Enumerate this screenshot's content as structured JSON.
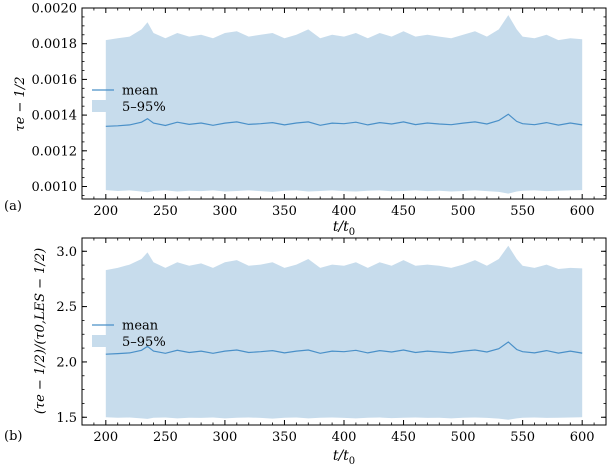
{
  "chart_data": [
    {
      "panel_label": "(a)",
      "type": "area",
      "xlabel": "t/t0",
      "ylabel": "τe − 1/2",
      "xlim": [
        180,
        620
      ],
      "ylim": [
        0.00093,
        0.002
      ],
      "xticks": [
        200,
        250,
        300,
        350,
        400,
        450,
        500,
        550,
        600
      ],
      "xtick_labels": [
        "200",
        "250",
        "300",
        "350",
        "400",
        "450",
        "500",
        "550",
        "600"
      ],
      "yticks": [
        0.001,
        0.0012,
        0.0014,
        0.0016,
        0.0018,
        0.002
      ],
      "ytick_labels": [
        "0.0010",
        "0.0012",
        "0.0014",
        "0.0016",
        "0.0018",
        "0.0020"
      ],
      "legend": {
        "position": "center-left",
        "entries": [
          "mean",
          "5–95%"
        ]
      },
      "grid": false,
      "x": [
        200,
        210,
        220,
        230,
        235,
        240,
        250,
        260,
        270,
        280,
        290,
        300,
        310,
        320,
        330,
        340,
        350,
        360,
        370,
        380,
        390,
        400,
        410,
        420,
        430,
        440,
        450,
        460,
        470,
        480,
        490,
        500,
        510,
        520,
        530,
        538,
        545,
        550,
        560,
        570,
        580,
        590,
        600
      ],
      "series": [
        {
          "name": "mean",
          "values": [
            0.001337,
            0.00134,
            0.001345,
            0.00136,
            0.00138,
            0.001355,
            0.001342,
            0.00136,
            0.001348,
            0.001356,
            0.001343,
            0.001355,
            0.001362,
            0.001348,
            0.001352,
            0.001358,
            0.001345,
            0.001356,
            0.001362,
            0.001343,
            0.001355,
            0.001352,
            0.00136,
            0.001345,
            0.001358,
            0.00135,
            0.001362,
            0.001347,
            0.001356,
            0.00135,
            0.001346,
            0.001355,
            0.001362,
            0.00135,
            0.00137,
            0.001405,
            0.001365,
            0.001352,
            0.001346,
            0.001358,
            0.001344,
            0.001356,
            0.001345
          ]
        },
        {
          "name": "5–95% upper",
          "values": [
            0.00182,
            0.00183,
            0.00184,
            0.00188,
            0.00192,
            0.00186,
            0.00183,
            0.00186,
            0.00184,
            0.00185,
            0.00183,
            0.00186,
            0.00187,
            0.00184,
            0.00185,
            0.00186,
            0.00183,
            0.00185,
            0.00188,
            0.00183,
            0.00185,
            0.00184,
            0.00186,
            0.00183,
            0.00186,
            0.00184,
            0.00187,
            0.00184,
            0.00185,
            0.00184,
            0.00183,
            0.00185,
            0.00187,
            0.00184,
            0.00188,
            0.00196,
            0.00188,
            0.00184,
            0.00183,
            0.00185,
            0.00182,
            0.00183,
            0.001825
          ]
        },
        {
          "name": "5–95% lower",
          "values": [
            0.00098,
            0.000975,
            0.000978,
            0.000972,
            0.000968,
            0.000975,
            0.000978,
            0.000972,
            0.000976,
            0.000974,
            0.000978,
            0.000972,
            0.000975,
            0.000978,
            0.000974,
            0.00097,
            0.000976,
            0.000978,
            0.000972,
            0.000975,
            0.000978,
            0.000974,
            0.000972,
            0.000976,
            0.000978,
            0.000973,
            0.000975,
            0.000978,
            0.000974,
            0.000976,
            0.000972,
            0.000975,
            0.000978,
            0.000974,
            0.00097,
            0.00096,
            0.000972,
            0.000976,
            0.000978,
            0.000974,
            0.000976,
            0.000978,
            0.00098
          ]
        }
      ]
    },
    {
      "panel_label": "(b)",
      "type": "area",
      "xlabel": "t/t0",
      "ylabel": "(τe − 1/2)/(τ0,LES − 1/2)",
      "xlim": [
        180,
        620
      ],
      "ylim": [
        1.43,
        3.12
      ],
      "xticks": [
        200,
        250,
        300,
        350,
        400,
        450,
        500,
        550,
        600
      ],
      "xtick_labels": [
        "200",
        "250",
        "300",
        "350",
        "400",
        "450",
        "500",
        "550",
        "600"
      ],
      "yticks": [
        1.5,
        2.0,
        2.5,
        3.0
      ],
      "ytick_labels": [
        "1.5",
        "2.0",
        "2.5",
        "3.0"
      ],
      "legend": {
        "position": "center-left",
        "entries": [
          "mean",
          "5–95%"
        ]
      },
      "grid": false,
      "x": [
        200,
        210,
        220,
        230,
        235,
        240,
        250,
        260,
        270,
        280,
        290,
        300,
        310,
        320,
        330,
        340,
        350,
        360,
        370,
        380,
        390,
        400,
        410,
        420,
        430,
        440,
        450,
        460,
        470,
        480,
        490,
        500,
        510,
        520,
        530,
        538,
        545,
        550,
        560,
        570,
        580,
        590,
        600
      ],
      "series": [
        {
          "name": "mean",
          "values": [
            2.07,
            2.075,
            2.082,
            2.105,
            2.14,
            2.098,
            2.078,
            2.105,
            2.085,
            2.098,
            2.078,
            2.098,
            2.108,
            2.085,
            2.092,
            2.102,
            2.082,
            2.098,
            2.108,
            2.078,
            2.098,
            2.092,
            2.105,
            2.082,
            2.102,
            2.09,
            2.108,
            2.085,
            2.098,
            2.09,
            2.082,
            2.098,
            2.108,
            2.09,
            2.12,
            2.18,
            2.112,
            2.092,
            2.082,
            2.102,
            2.08,
            2.098,
            2.08
          ]
        },
        {
          "name": "5–95% upper",
          "values": [
            2.83,
            2.85,
            2.88,
            2.93,
            2.99,
            2.9,
            2.85,
            2.9,
            2.87,
            2.89,
            2.85,
            2.9,
            2.92,
            2.87,
            2.88,
            2.9,
            2.85,
            2.88,
            2.93,
            2.85,
            2.88,
            2.87,
            2.9,
            2.85,
            2.9,
            2.87,
            2.92,
            2.87,
            2.88,
            2.87,
            2.85,
            2.88,
            2.92,
            2.87,
            2.93,
            3.05,
            2.93,
            2.87,
            2.85,
            2.88,
            2.84,
            2.85,
            2.845
          ]
        },
        {
          "name": "5–95% lower",
          "values": [
            1.5,
            1.495,
            1.498,
            1.49,
            1.485,
            1.495,
            1.498,
            1.49,
            1.496,
            1.494,
            1.498,
            1.49,
            1.495,
            1.498,
            1.494,
            1.488,
            1.496,
            1.498,
            1.49,
            1.495,
            1.498,
            1.494,
            1.49,
            1.496,
            1.498,
            1.492,
            1.495,
            1.498,
            1.494,
            1.496,
            1.49,
            1.495,
            1.498,
            1.494,
            1.488,
            1.478,
            1.49,
            1.496,
            1.498,
            1.494,
            1.496,
            1.498,
            1.5
          ]
        }
      ]
    }
  ],
  "colors": {
    "mean_line": "#4a90c8",
    "band_fill": "#c7dcec",
    "axis": "#000000"
  }
}
